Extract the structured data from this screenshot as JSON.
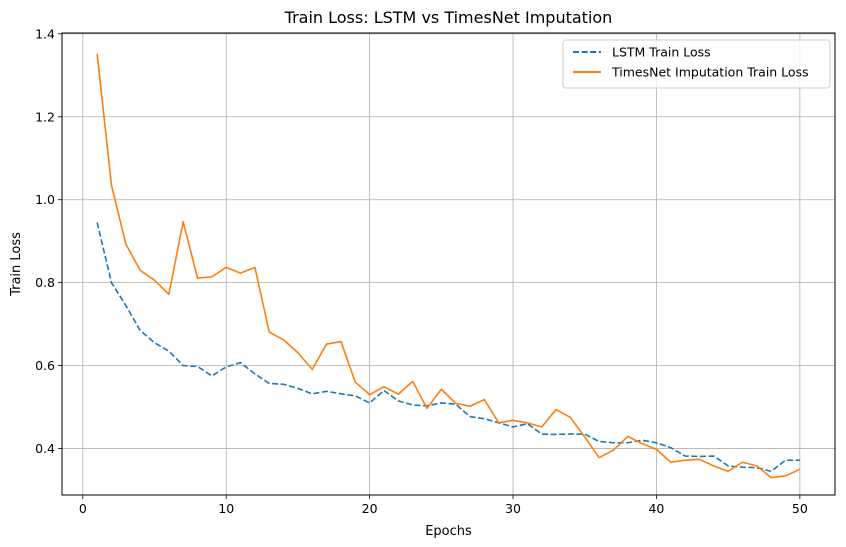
{
  "chart_data": {
    "type": "line",
    "title": "Train Loss: LSTM vs TimesNet Imputation",
    "xlabel": "Epochs",
    "ylabel": "Train Loss",
    "xlim": [
      -1.45,
      52.45
    ],
    "ylim": [
      0.288,
      1.402
    ],
    "xticks": [
      0,
      10,
      20,
      30,
      40,
      50
    ],
    "yticks": [
      0.4,
      0.6,
      0.8,
      1.0,
      1.2,
      1.4
    ],
    "ytick_labels": [
      "0.4",
      "0.6",
      "0.8",
      "1.0",
      "1.2",
      "1.4"
    ],
    "grid": true,
    "legend_position": "top-right",
    "x": [
      1,
      2,
      3,
      4,
      5,
      6,
      7,
      8,
      9,
      10,
      11,
      12,
      13,
      14,
      15,
      16,
      17,
      18,
      19,
      20,
      21,
      22,
      23,
      24,
      25,
      26,
      27,
      28,
      29,
      30,
      31,
      32,
      33,
      34,
      35,
      36,
      37,
      38,
      39,
      40,
      41,
      42,
      43,
      44,
      45,
      46,
      47,
      48,
      49,
      50
    ],
    "series": [
      {
        "name": "LSTM Train Loss",
        "color": "#1f77b4",
        "style": "dashed",
        "values": [
          0.945,
          0.8,
          0.745,
          0.685,
          0.655,
          0.635,
          0.6,
          0.598,
          0.575,
          0.597,
          0.607,
          0.58,
          0.557,
          0.555,
          0.545,
          0.532,
          0.538,
          0.532,
          0.527,
          0.51,
          0.54,
          0.515,
          0.505,
          0.503,
          0.51,
          0.507,
          0.477,
          0.472,
          0.462,
          0.452,
          0.46,
          0.435,
          0.434,
          0.435,
          0.435,
          0.417,
          0.414,
          0.414,
          0.42,
          0.414,
          0.402,
          0.382,
          0.381,
          0.382,
          0.358,
          0.355,
          0.354,
          0.345,
          0.372,
          0.372
        ]
      },
      {
        "name": "TimesNet Imputation Train Loss",
        "color": "#ff7f0e",
        "style": "solid",
        "values": [
          1.352,
          1.035,
          0.893,
          0.83,
          0.806,
          0.772,
          0.947,
          0.811,
          0.814,
          0.837,
          0.823,
          0.837,
          0.681,
          0.662,
          0.631,
          0.591,
          0.652,
          0.658,
          0.56,
          0.53,
          0.549,
          0.531,
          0.562,
          0.497,
          0.543,
          0.509,
          0.502,
          0.518,
          0.462,
          0.468,
          0.462,
          0.452,
          0.494,
          0.475,
          0.428,
          0.378,
          0.396,
          0.429,
          0.412,
          0.398,
          0.367,
          0.372,
          0.374,
          0.358,
          0.345,
          0.367,
          0.358,
          0.33,
          0.334,
          0.35
        ]
      }
    ]
  }
}
